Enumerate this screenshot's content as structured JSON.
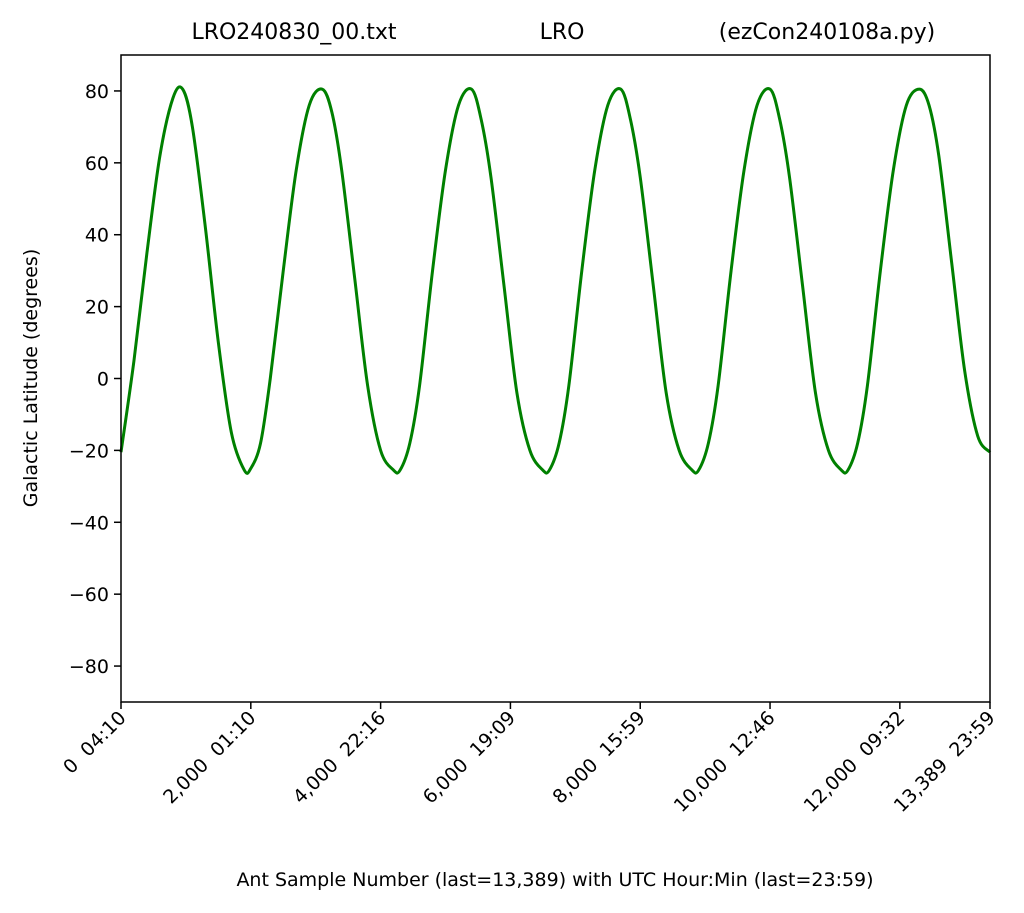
{
  "chart_data": {
    "type": "line",
    "title_left": "LRO240830_00.txt",
    "title_center": "LRO",
    "title_right": "(ezCon240108a.py)",
    "xlabel": "Ant Sample Number (last=13,389) with UTC Hour:Min (last=23:59)",
    "ylabel": "Galactic Latitude (degrees)",
    "xlim": [
      0,
      13389
    ],
    "ylim": [
      -90,
      90
    ],
    "x_ticks": [
      {
        "value": 0,
        "label": "0  04:10"
      },
      {
        "value": 2000,
        "label": "2,000  01:10"
      },
      {
        "value": 4000,
        "label": "4,000  22:16"
      },
      {
        "value": 6000,
        "label": "6,000  19:09"
      },
      {
        "value": 8000,
        "label": "8,000  15:59"
      },
      {
        "value": 10000,
        "label": "10,000  12:46"
      },
      {
        "value": 12000,
        "label": "12,000  09:32"
      },
      {
        "value": 13389,
        "label": "13,389  23:59"
      }
    ],
    "y_ticks": [
      {
        "value": 80,
        "label": "80"
      },
      {
        "value": 60,
        "label": "60"
      },
      {
        "value": 40,
        "label": "40"
      },
      {
        "value": 20,
        "label": "20"
      },
      {
        "value": 0,
        "label": "0"
      },
      {
        "value": -20,
        "label": "−20"
      },
      {
        "value": -40,
        "label": "−40"
      },
      {
        "value": -60,
        "label": "−60"
      },
      {
        "value": -80,
        "label": "−80"
      }
    ],
    "grid": false,
    "series": [
      {
        "color": "#008000",
        "x": [
          0,
          200,
          400,
          600,
          800,
          950,
          1100,
          1300,
          1500,
          1700,
          1900,
          2000,
          2150,
          2300,
          2500,
          2700,
          2900,
          3100,
          3250,
          3400,
          3600,
          3800,
          4000,
          4200,
          4300,
          4450,
          4600,
          4800,
          5000,
          5200,
          5400,
          5550,
          5700,
          5900,
          6100,
          6300,
          6500,
          6600,
          6750,
          6900,
          7100,
          7300,
          7500,
          7700,
          7850,
          8000,
          8200,
          8400,
          8600,
          8800,
          8900,
          9050,
          9200,
          9400,
          9600,
          9800,
          10000,
          10150,
          10300,
          10500,
          10700,
          10900,
          11100,
          11200,
          11350,
          11500,
          11700,
          11900,
          12100,
          12300,
          12450,
          12600,
          12800,
          13000,
          13200,
          13389
        ],
        "y": [
          -20.5,
          5,
          35,
          62,
          78,
          80.5,
          70,
          42,
          10,
          -15,
          -25.5,
          -25,
          -18,
          0,
          30,
          58,
          76,
          80.5,
          74,
          58,
          28,
          -2,
          -20,
          -25.5,
          -25.5,
          -18,
          -2,
          30,
          58,
          76,
          80.5,
          72,
          56,
          26,
          -4,
          -20,
          -25.5,
          -25.5,
          -18,
          -2,
          30,
          58,
          76,
          80.5,
          72,
          56,
          26,
          -4,
          -20,
          -25.5,
          -25.5,
          -18,
          -2,
          30,
          58,
          76,
          80.5,
          72,
          56,
          26,
          -4,
          -20,
          -25.5,
          -25.5,
          -18,
          -2,
          30,
          58,
          76,
          80.5,
          76,
          62,
          32,
          2,
          -16,
          -20.5
        ]
      }
    ]
  }
}
